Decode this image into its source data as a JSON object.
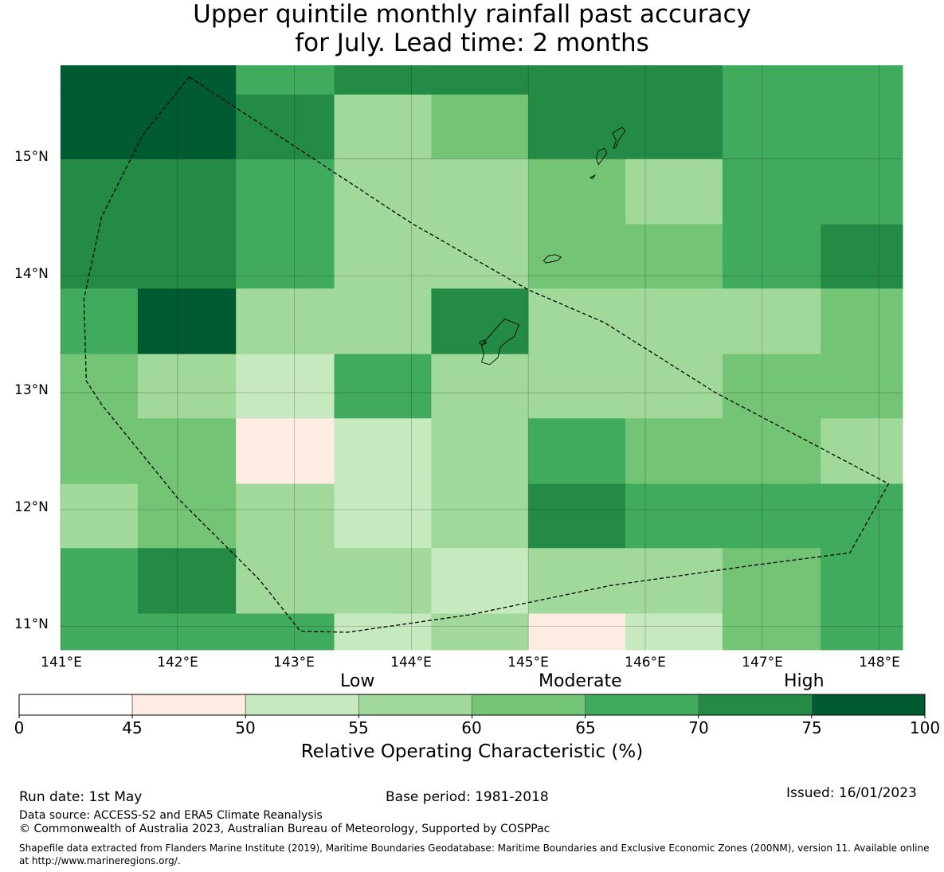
{
  "title": {
    "line1": "Upper quintile monthly rainfall past accuracy",
    "line2": "for July. Lead time: 2 months"
  },
  "axes": {
    "lon_labels": [
      "141°E",
      "142°E",
      "143°E",
      "144°E",
      "145°E",
      "146°E",
      "147°E",
      "148°E"
    ],
    "lat_labels": [
      "15°N",
      "14°N",
      "13°N",
      "12°N",
      "11°N"
    ]
  },
  "map_grid": {
    "lon_edges": [
      141.0,
      141.66,
      142.5,
      143.34,
      144.17,
      145.0,
      145.83,
      146.66,
      147.5,
      148.2
    ],
    "lat_edges": [
      15.8,
      15.55,
      15.0,
      14.44,
      13.89,
      13.33,
      12.78,
      12.22,
      11.67,
      11.11,
      10.8
    ],
    "roc_percent": [
      [
        80,
        80,
        68,
        73,
        73,
        73,
        72,
        68,
        68
      ],
      [
        80,
        80,
        73,
        57,
        62,
        73,
        73,
        68,
        68
      ],
      [
        73,
        73,
        68,
        57,
        57,
        62,
        57,
        68,
        68
      ],
      [
        73,
        73,
        68,
        57,
        57,
        62,
        62,
        68,
        73
      ],
      [
        68,
        80,
        57,
        57,
        73,
        57,
        57,
        57,
        62
      ],
      [
        62,
        57,
        53,
        68,
        57,
        57,
        57,
        62,
        62
      ],
      [
        62,
        62,
        48,
        53,
        57,
        68,
        62,
        62,
        57
      ],
      [
        57,
        62,
        57,
        53,
        57,
        73,
        68,
        68,
        68
      ],
      [
        68,
        73,
        57,
        57,
        53,
        57,
        57,
        62,
        68
      ],
      [
        68,
        68,
        68,
        53,
        57,
        48,
        53,
        62,
        68
      ]
    ],
    "boundary": [
      [
        142.1,
        15.7
      ],
      [
        141.7,
        15.2
      ],
      [
        141.35,
        14.5
      ],
      [
        141.2,
        13.8
      ],
      [
        141.22,
        13.1
      ],
      [
        141.35,
        12.9
      ],
      [
        142.0,
        12.1
      ],
      [
        142.7,
        11.4
      ],
      [
        143.05,
        10.96
      ],
      [
        143.45,
        10.95
      ],
      [
        144.5,
        11.1
      ],
      [
        145.7,
        11.35
      ],
      [
        146.9,
        11.52
      ],
      [
        147.75,
        11.63
      ],
      [
        148.08,
        12.22
      ],
      [
        146.6,
        13.0
      ],
      [
        145.65,
        13.6
      ],
      [
        145.0,
        13.88
      ],
      [
        144.0,
        14.45
      ],
      [
        142.1,
        15.7
      ]
    ],
    "islands": [
      [
        [
          144.62,
          13.43
        ],
        [
          144.75,
          13.58
        ],
        [
          144.8,
          13.63
        ],
        [
          144.92,
          13.58
        ],
        [
          144.88,
          13.48
        ],
        [
          144.82,
          13.44
        ],
        [
          144.76,
          13.39
        ],
        [
          144.74,
          13.3
        ],
        [
          144.67,
          13.24
        ],
        [
          144.6,
          13.26
        ],
        [
          144.62,
          13.33
        ],
        [
          144.6,
          13.4
        ],
        [
          144.62,
          13.43
        ]
      ],
      [
        [
          144.58,
          13.43
        ],
        [
          144.62,
          13.45
        ],
        [
          144.64,
          13.42
        ],
        [
          144.6,
          13.41
        ],
        [
          144.58,
          13.43
        ]
      ],
      [
        [
          145.13,
          14.13
        ],
        [
          145.17,
          14.17
        ],
        [
          145.23,
          14.18
        ],
        [
          145.28,
          14.16
        ],
        [
          145.25,
          14.13
        ],
        [
          145.2,
          14.12
        ],
        [
          145.15,
          14.11
        ],
        [
          145.13,
          14.13
        ]
      ],
      [
        [
          145.6,
          14.95
        ],
        [
          145.63,
          14.99
        ],
        [
          145.67,
          15.05
        ],
        [
          145.65,
          15.09
        ],
        [
          145.6,
          15.07
        ],
        [
          145.58,
          15.01
        ],
        [
          145.6,
          14.95
        ]
      ],
      [
        [
          145.53,
          14.84
        ],
        [
          145.57,
          14.86
        ],
        [
          145.55,
          14.83
        ],
        [
          145.53,
          14.84
        ]
      ],
      [
        [
          145.73,
          15.09
        ],
        [
          145.75,
          15.16
        ],
        [
          145.72,
          15.22
        ],
        [
          145.8,
          15.27
        ],
        [
          145.83,
          15.24
        ],
        [
          145.77,
          15.16
        ],
        [
          145.75,
          15.1
        ],
        [
          145.73,
          15.09
        ]
      ]
    ]
  },
  "colorbar": {
    "category_labels": [
      "Low",
      "Moderate",
      "High"
    ],
    "bounds": [
      0,
      45,
      50,
      55,
      60,
      65,
      70,
      75,
      100
    ],
    "colors": [
      "#ffffff",
      "#feebe2",
      "#c7e9c0",
      "#a1d99b",
      "#74c476",
      "#41ab5d",
      "#238b45",
      "#005a32"
    ],
    "tick_labels": [
      "0",
      "45",
      "50",
      "55",
      "60",
      "65",
      "70",
      "75",
      "100"
    ],
    "label": "Relative Operating Characteristic (%)"
  },
  "footer": {
    "run_date": "Run date: 1st May",
    "base_period": "Base period: 1981-2018",
    "issued": "Issued: 16/01/2023",
    "data_source": "Data source: ACCESS-S2 and ERA5 Climate Reanalysis",
    "copyright": "© Commonwealth of Australia 2023, Australian Bureau of Meteorology, Supported by COSPPac",
    "shapefile": "Shapefile data extracted from Flanders Marine Institute (2019), Maritime Boundaries Geodatabase: Maritime Boundaries and Exclusive Economic Zones (200NM), version 11. Available online at http://www.marineregions.org/."
  }
}
